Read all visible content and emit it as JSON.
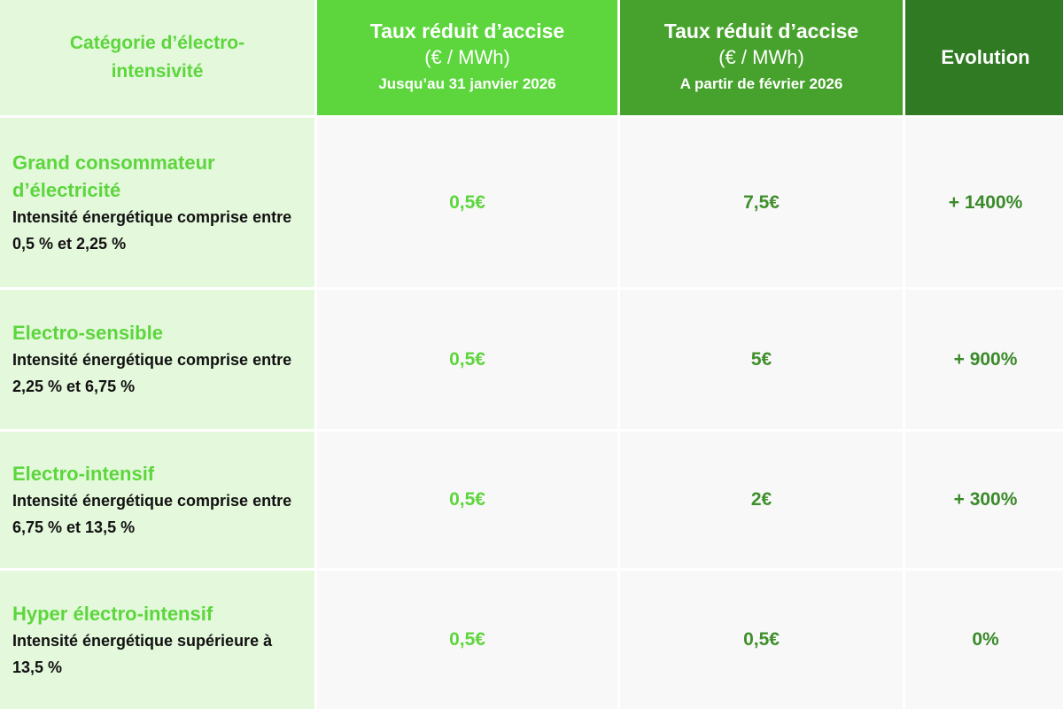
{
  "table": {
    "header": {
      "category": "Catégorie d’électro-intensivité",
      "before": {
        "title": "Taux réduit d’accise",
        "unit": "(€ / MWh)",
        "period": "Jusqu’au 31 janvier 2026"
      },
      "after": {
        "title": "Taux réduit d’accise",
        "unit": "(€ / MWh)",
        "period": "A partir de février 2026"
      },
      "evolution": "Evolution"
    },
    "rows": [
      {
        "category": "Grand consommateur d’électricité",
        "description": "Intensité énergétique comprise entre 0,5 % et 2,25 %",
        "before": "0,5€",
        "after": "7,5€",
        "evolution": "+ 1400%"
      },
      {
        "category": "Electro-sensible",
        "description": "Intensité énergétique comprise entre 2,25 % et 6,75 %",
        "before": "0,5€",
        "after": "5€",
        "evolution": "+ 900%"
      },
      {
        "category": "Electro-intensif",
        "description": "Intensité énergétique comprise entre 6,75 % et 13,5 %",
        "before": "0,5€",
        "after": "2€",
        "evolution": "+ 300%"
      },
      {
        "category": "Hyper électro-intensif",
        "description": "Intensité énergétique supérieure à 13,5 %",
        "before": "0,5€",
        "after": "0,5€",
        "evolution": "0%"
      }
    ]
  }
}
